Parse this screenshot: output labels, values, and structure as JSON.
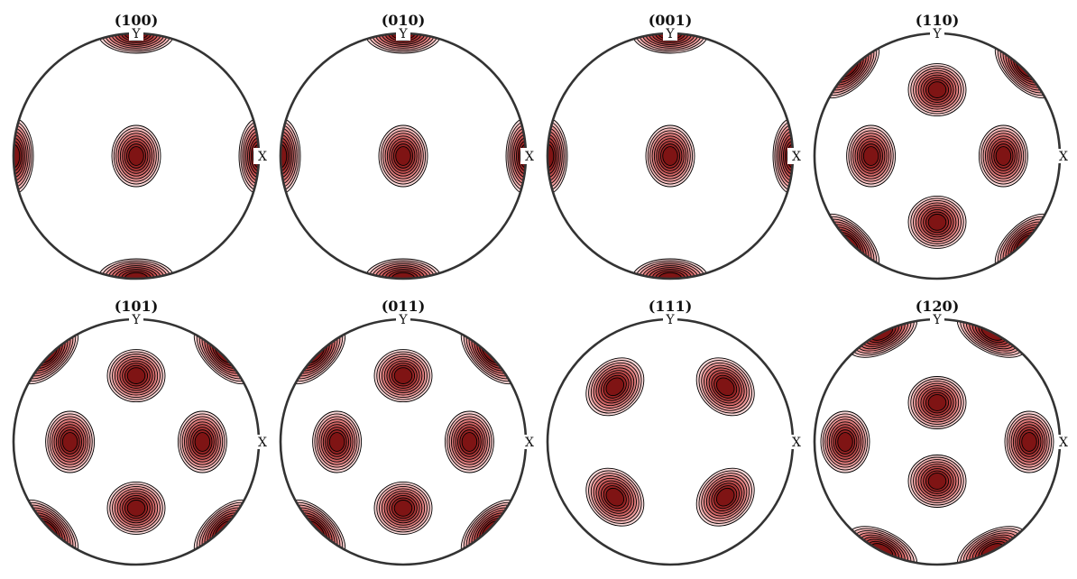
{
  "chart_data": {
    "type": "pole_figure",
    "colors": {
      "levels": [
        "#fbd9d9",
        "#f5b9b9",
        "#ec9a9a",
        "#e07d7d",
        "#d06565",
        "#bf4d4d",
        "#ad3838",
        "#982424",
        "#7f1414"
      ],
      "contour_line": "#000000",
      "outline": "#333333",
      "label_bg": "#ffffff"
    },
    "axis_labels": {
      "x": "X",
      "y": "Y"
    },
    "panels": [
      {
        "title": "(100)",
        "poles": [
          {
            "x": 0,
            "y": 0,
            "angle": 0
          },
          {
            "x": 1,
            "y": 0,
            "angle": 0
          },
          {
            "x": -1,
            "y": 0,
            "angle": 0
          },
          {
            "x": 0,
            "y": 1,
            "angle": 90
          },
          {
            "x": 0,
            "y": -1,
            "angle": 90
          }
        ]
      },
      {
        "title": "(010)",
        "poles": [
          {
            "x": 0,
            "y": 0,
            "angle": 0
          },
          {
            "x": 1,
            "y": 0,
            "angle": 0
          },
          {
            "x": -1,
            "y": 0,
            "angle": 0
          },
          {
            "x": 0,
            "y": 1,
            "angle": 90
          },
          {
            "x": 0,
            "y": -1,
            "angle": 90
          }
        ]
      },
      {
        "title": "(001)",
        "poles": [
          {
            "x": 0,
            "y": 0,
            "angle": 0
          },
          {
            "x": 1,
            "y": 0,
            "angle": 0
          },
          {
            "x": -1,
            "y": 0,
            "angle": 0
          },
          {
            "x": 0,
            "y": 1,
            "angle": 90
          },
          {
            "x": 0,
            "y": -1,
            "angle": 90
          }
        ]
      },
      {
        "title": "(110)",
        "poles": [
          {
            "x": 0,
            "y": 0.54,
            "angle": 90
          },
          {
            "x": 0,
            "y": -0.54,
            "angle": 90
          },
          {
            "x": 0.54,
            "y": 0,
            "angle": 0
          },
          {
            "x": -0.54,
            "y": 0,
            "angle": 0
          },
          {
            "x": 0.72,
            "y": 0.72,
            "angle": 45
          },
          {
            "x": -0.72,
            "y": 0.72,
            "angle": -45
          },
          {
            "x": 0.72,
            "y": -0.72,
            "angle": -45
          },
          {
            "x": -0.72,
            "y": -0.72,
            "angle": 45
          }
        ]
      },
      {
        "title": "(101)",
        "poles": [
          {
            "x": 0,
            "y": 0.54,
            "angle": 90
          },
          {
            "x": 0,
            "y": -0.54,
            "angle": 90
          },
          {
            "x": 0.54,
            "y": 0,
            "angle": 0
          },
          {
            "x": -0.54,
            "y": 0,
            "angle": 0
          },
          {
            "x": 0.72,
            "y": 0.72,
            "angle": 45
          },
          {
            "x": -0.72,
            "y": 0.72,
            "angle": -45
          },
          {
            "x": 0.72,
            "y": -0.72,
            "angle": -45
          },
          {
            "x": -0.72,
            "y": -0.72,
            "angle": 45
          }
        ]
      },
      {
        "title": "(011)",
        "poles": [
          {
            "x": 0,
            "y": 0.54,
            "angle": 90
          },
          {
            "x": 0,
            "y": -0.54,
            "angle": 90
          },
          {
            "x": 0.54,
            "y": 0,
            "angle": 0
          },
          {
            "x": -0.54,
            "y": 0,
            "angle": 0
          },
          {
            "x": 0.72,
            "y": 0.72,
            "angle": 45
          },
          {
            "x": -0.72,
            "y": 0.72,
            "angle": -45
          },
          {
            "x": 0.72,
            "y": -0.72,
            "angle": -45
          },
          {
            "x": -0.72,
            "y": -0.72,
            "angle": 45
          }
        ]
      },
      {
        "title": "(111)",
        "poles": [
          {
            "x": 0.45,
            "y": 0.45,
            "angle": 45
          },
          {
            "x": -0.45,
            "y": 0.45,
            "angle": -45
          },
          {
            "x": 0.45,
            "y": -0.45,
            "angle": -45
          },
          {
            "x": -0.45,
            "y": -0.45,
            "angle": 45
          }
        ]
      },
      {
        "title": "(120)",
        "poles": [
          {
            "x": 0,
            "y": 0.32,
            "angle": 90
          },
          {
            "x": 0,
            "y": -0.32,
            "angle": 90
          },
          {
            "x": 0.75,
            "y": 0,
            "angle": 0
          },
          {
            "x": -0.75,
            "y": 0,
            "angle": 0
          },
          {
            "x": 0.45,
            "y": 0.89,
            "angle": 30
          },
          {
            "x": -0.45,
            "y": 0.89,
            "angle": -30
          },
          {
            "x": 0.45,
            "y": -0.89,
            "angle": -30
          },
          {
            "x": -0.45,
            "y": -0.89,
            "angle": 30
          }
        ]
      }
    ]
  }
}
